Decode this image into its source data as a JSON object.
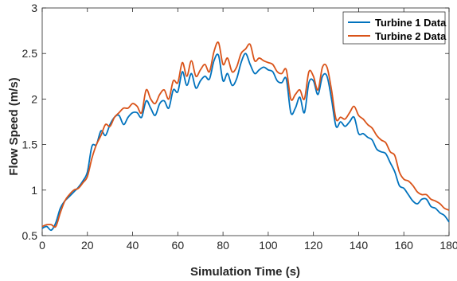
{
  "chart_data": {
    "type": "line",
    "xlabel": "Simulation Time (s)",
    "ylabel": "Flow Speed (m/s)",
    "xlim": [
      0,
      180
    ],
    "ylim": [
      0.5,
      3
    ],
    "xticks": [
      "0",
      "20",
      "40",
      "60",
      "80",
      "100",
      "120",
      "140",
      "160",
      "180"
    ],
    "yticks": [
      "0.5",
      "1",
      "1.5",
      "2",
      "2.5",
      "3"
    ],
    "grid": false,
    "legend_position": "top-right",
    "series": [
      {
        "name": "Turbine 1 Data",
        "color": "#0072BD",
        "x": [
          0,
          2,
          4,
          6,
          8,
          10,
          12,
          14,
          16,
          18,
          20,
          22,
          24,
          26,
          28,
          30,
          32,
          34,
          36,
          38,
          40,
          42,
          44,
          46,
          48,
          50,
          52,
          54,
          56,
          58,
          60,
          62,
          64,
          66,
          68,
          70,
          72,
          74,
          76,
          78,
          80,
          82,
          84,
          86,
          88,
          90,
          92,
          94,
          96,
          98,
          100,
          102,
          104,
          106,
          108,
          110,
          112,
          114,
          116,
          118,
          120,
          122,
          124,
          126,
          128,
          130,
          132,
          134,
          136,
          138,
          140,
          142,
          144,
          146,
          148,
          150,
          152,
          154,
          156,
          158,
          160,
          162,
          164,
          166,
          168,
          170,
          172,
          174,
          176,
          178,
          180
        ],
        "y": [
          0.58,
          0.6,
          0.56,
          0.64,
          0.8,
          0.88,
          0.93,
          0.98,
          1.03,
          1.1,
          1.2,
          1.48,
          1.5,
          1.65,
          1.6,
          1.72,
          1.8,
          1.82,
          1.72,
          1.8,
          1.85,
          1.85,
          1.8,
          1.98,
          1.9,
          1.82,
          1.95,
          1.98,
          1.9,
          2.1,
          2.08,
          2.3,
          2.15,
          2.28,
          2.12,
          2.2,
          2.25,
          2.22,
          2.42,
          2.48,
          2.2,
          2.28,
          2.15,
          2.22,
          2.4,
          2.5,
          2.38,
          2.28,
          2.32,
          2.35,
          2.32,
          2.3,
          2.2,
          2.18,
          2.22,
          1.85,
          1.9,
          2.02,
          1.85,
          2.18,
          2.2,
          2.05,
          2.25,
          2.25,
          2.0,
          1.7,
          1.75,
          1.7,
          1.75,
          1.8,
          1.62,
          1.62,
          1.58,
          1.55,
          1.45,
          1.42,
          1.4,
          1.3,
          1.2,
          1.05,
          1.02,
          0.95,
          0.88,
          0.85,
          0.9,
          0.9,
          0.82,
          0.8,
          0.75,
          0.72,
          0.65
        ]
      },
      {
        "name": "Turbine 2 Data",
        "color": "#D95319",
        "x": [
          0,
          2,
          4,
          6,
          8,
          10,
          12,
          14,
          16,
          18,
          20,
          22,
          24,
          26,
          28,
          30,
          32,
          34,
          36,
          38,
          40,
          42,
          44,
          46,
          48,
          50,
          52,
          54,
          56,
          58,
          60,
          62,
          64,
          66,
          68,
          70,
          72,
          74,
          76,
          78,
          80,
          82,
          84,
          86,
          88,
          90,
          92,
          94,
          96,
          98,
          100,
          102,
          104,
          106,
          108,
          110,
          112,
          114,
          116,
          118,
          120,
          122,
          124,
          126,
          128,
          130,
          132,
          134,
          136,
          138,
          140,
          142,
          144,
          146,
          148,
          150,
          152,
          154,
          156,
          158,
          160,
          162,
          164,
          166,
          168,
          170,
          172,
          174,
          176,
          178,
          180
        ],
        "y": [
          0.6,
          0.62,
          0.62,
          0.6,
          0.75,
          0.88,
          0.95,
          1.0,
          1.02,
          1.08,
          1.15,
          1.35,
          1.5,
          1.6,
          1.72,
          1.7,
          1.8,
          1.85,
          1.9,
          1.9,
          1.95,
          1.92,
          1.85,
          2.1,
          2.0,
          1.95,
          2.05,
          2.1,
          2.0,
          2.2,
          2.18,
          2.4,
          2.25,
          2.42,
          2.25,
          2.32,
          2.38,
          2.3,
          2.52,
          2.62,
          2.38,
          2.45,
          2.3,
          2.35,
          2.5,
          2.55,
          2.6,
          2.42,
          2.45,
          2.42,
          2.4,
          2.38,
          2.3,
          2.28,
          2.32,
          2.0,
          2.05,
          2.1,
          2.0,
          2.3,
          2.25,
          2.1,
          2.35,
          2.35,
          2.1,
          1.78,
          1.8,
          1.78,
          1.85,
          1.92,
          1.82,
          1.78,
          1.72,
          1.68,
          1.6,
          1.55,
          1.52,
          1.42,
          1.38,
          1.2,
          1.12,
          1.1,
          1.05,
          0.98,
          0.95,
          0.95,
          0.9,
          0.88,
          0.85,
          0.8,
          0.78
        ]
      }
    ]
  }
}
